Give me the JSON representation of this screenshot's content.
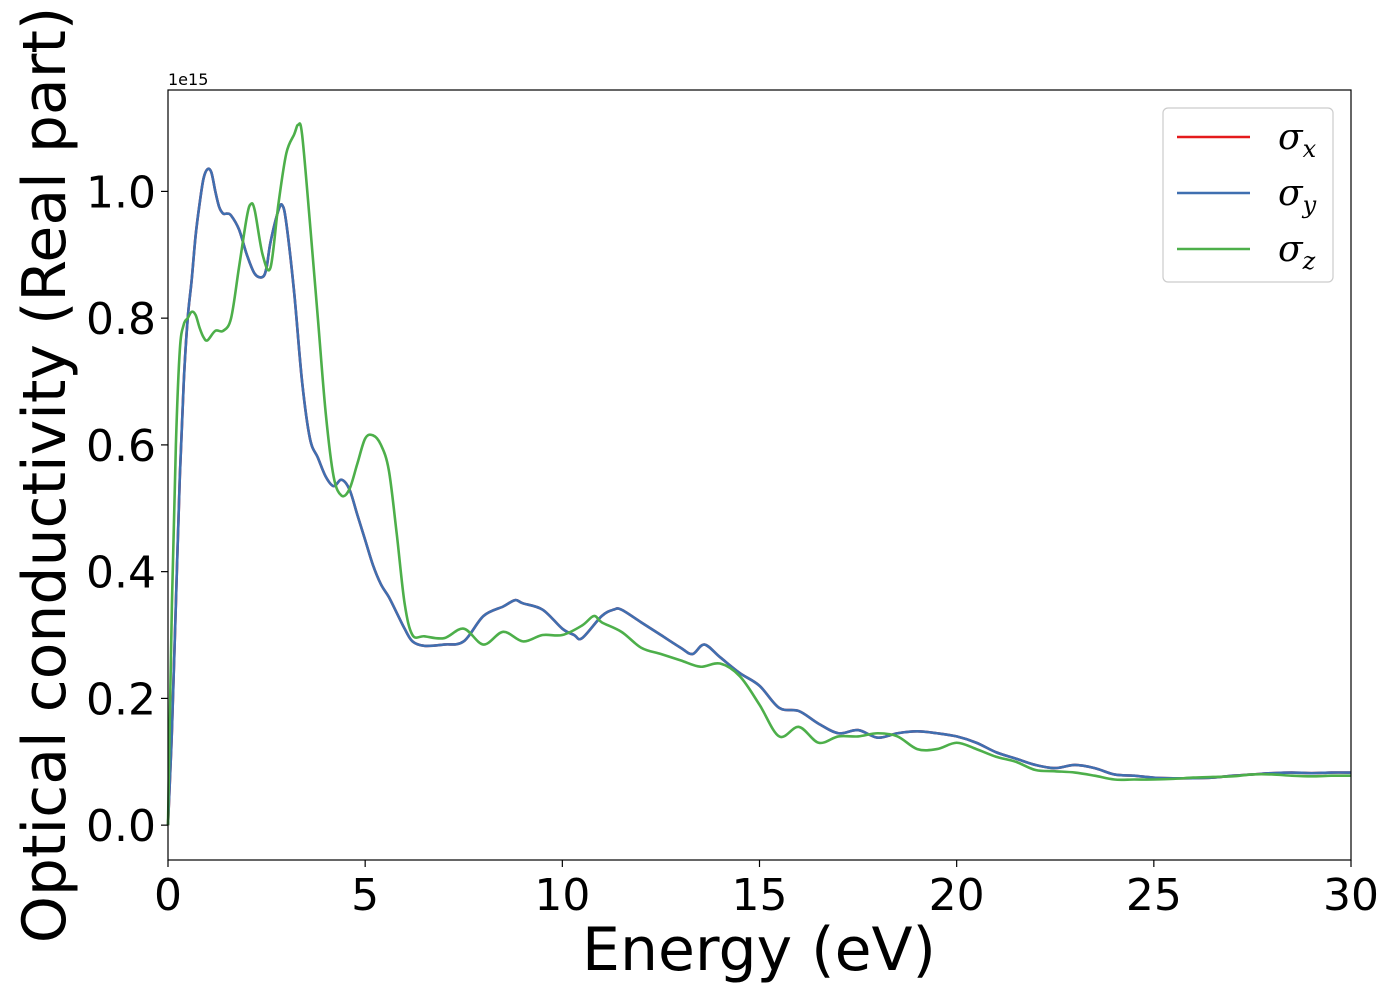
{
  "chart_data": {
    "type": "line",
    "title": "",
    "xlabel": "Energy (eV)",
    "ylabel": "Optical conductivity (Real part)",
    "y_offset_label": "1e15",
    "xlim": [
      0,
      30
    ],
    "ylim": [
      -0.055,
      1.16
    ],
    "x_ticks": [
      0,
      5,
      10,
      15,
      20,
      25,
      30
    ],
    "x_tick_labels": [
      "0",
      "5",
      "10",
      "15",
      "20",
      "25",
      "30"
    ],
    "y_ticks": [
      0.0,
      0.2,
      0.4,
      0.6,
      0.8,
      1.0
    ],
    "y_tick_labels": [
      "0.0",
      "0.2",
      "0.4",
      "0.6",
      "0.8",
      "1.0"
    ],
    "grid": false,
    "legend_position": "top-right",
    "series": [
      {
        "name": "σx",
        "symbol": "σ",
        "subscript": "x",
        "color": "#e41a1c",
        "x": [
          0.0,
          0.1,
          0.2,
          0.3,
          0.4,
          0.5,
          0.6,
          0.7,
          0.8,
          0.9,
          1.0,
          1.1,
          1.2,
          1.3,
          1.4,
          1.5,
          1.6,
          1.8,
          2.0,
          2.2,
          2.4,
          2.5,
          2.6,
          2.8,
          2.9,
          3.0,
          3.2,
          3.4,
          3.6,
          3.8,
          4.0,
          4.2,
          4.4,
          4.6,
          4.8,
          5.0,
          5.2,
          5.4,
          5.6,
          5.8,
          6.0,
          6.2,
          6.5,
          7.0,
          7.5,
          8.0,
          8.5,
          8.8,
          9.0,
          9.5,
          10.0,
          10.3,
          10.5,
          11.0,
          11.3,
          11.5,
          12.0,
          12.5,
          13.0,
          13.3,
          13.6,
          14.0,
          14.5,
          15.0,
          15.5,
          16.0,
          16.5,
          17.0,
          17.5,
          18.0,
          18.5,
          19.0,
          19.5,
          20.0,
          20.5,
          21.0,
          21.5,
          22.0,
          22.5,
          23.0,
          23.5,
          24.0,
          24.5,
          25.0,
          25.5,
          26.0,
          26.5,
          27.0,
          27.5,
          28.0,
          28.5,
          29.0,
          29.5,
          30.0
        ],
        "y": [
          0.0,
          0.15,
          0.35,
          0.55,
          0.7,
          0.8,
          0.86,
          0.93,
          0.98,
          1.02,
          1.035,
          1.03,
          1.0,
          0.975,
          0.965,
          0.965,
          0.962,
          0.94,
          0.9,
          0.87,
          0.865,
          0.88,
          0.92,
          0.97,
          0.978,
          0.95,
          0.84,
          0.7,
          0.61,
          0.58,
          0.55,
          0.535,
          0.545,
          0.53,
          0.49,
          0.45,
          0.41,
          0.38,
          0.36,
          0.335,
          0.31,
          0.29,
          0.283,
          0.285,
          0.29,
          0.33,
          0.345,
          0.355,
          0.35,
          0.34,
          0.31,
          0.3,
          0.295,
          0.33,
          0.34,
          0.34,
          0.32,
          0.3,
          0.28,
          0.27,
          0.285,
          0.265,
          0.24,
          0.22,
          0.185,
          0.18,
          0.16,
          0.145,
          0.15,
          0.138,
          0.145,
          0.148,
          0.145,
          0.14,
          0.13,
          0.115,
          0.105,
          0.095,
          0.09,
          0.095,
          0.09,
          0.08,
          0.078,
          0.075,
          0.074,
          0.074,
          0.075,
          0.078,
          0.08,
          0.082,
          0.083,
          0.082,
          0.083,
          0.083
        ]
      },
      {
        "name": "σy",
        "symbol": "σ",
        "subscript": "y",
        "color": "#3f6fb0",
        "x": [
          0.0,
          0.1,
          0.2,
          0.3,
          0.4,
          0.5,
          0.6,
          0.7,
          0.8,
          0.9,
          1.0,
          1.1,
          1.2,
          1.3,
          1.4,
          1.5,
          1.6,
          1.8,
          2.0,
          2.2,
          2.4,
          2.5,
          2.6,
          2.8,
          2.9,
          3.0,
          3.2,
          3.4,
          3.6,
          3.8,
          4.0,
          4.2,
          4.4,
          4.6,
          4.8,
          5.0,
          5.2,
          5.4,
          5.6,
          5.8,
          6.0,
          6.2,
          6.5,
          7.0,
          7.5,
          8.0,
          8.5,
          8.8,
          9.0,
          9.5,
          10.0,
          10.3,
          10.5,
          11.0,
          11.3,
          11.5,
          12.0,
          12.5,
          13.0,
          13.3,
          13.6,
          14.0,
          14.5,
          15.0,
          15.5,
          16.0,
          16.5,
          17.0,
          17.5,
          18.0,
          18.5,
          19.0,
          19.5,
          20.0,
          20.5,
          21.0,
          21.5,
          22.0,
          22.5,
          23.0,
          23.5,
          24.0,
          24.5,
          25.0,
          25.5,
          26.0,
          26.5,
          27.0,
          27.5,
          28.0,
          28.5,
          29.0,
          29.5,
          30.0
        ],
        "y": [
          0.0,
          0.15,
          0.35,
          0.55,
          0.7,
          0.8,
          0.86,
          0.93,
          0.98,
          1.02,
          1.035,
          1.03,
          1.0,
          0.975,
          0.965,
          0.965,
          0.962,
          0.94,
          0.9,
          0.87,
          0.865,
          0.88,
          0.92,
          0.97,
          0.978,
          0.95,
          0.84,
          0.7,
          0.61,
          0.58,
          0.55,
          0.535,
          0.545,
          0.53,
          0.49,
          0.45,
          0.41,
          0.38,
          0.36,
          0.335,
          0.31,
          0.29,
          0.283,
          0.285,
          0.29,
          0.33,
          0.345,
          0.355,
          0.35,
          0.34,
          0.31,
          0.3,
          0.295,
          0.33,
          0.34,
          0.34,
          0.32,
          0.3,
          0.28,
          0.27,
          0.285,
          0.265,
          0.24,
          0.22,
          0.185,
          0.18,
          0.16,
          0.145,
          0.15,
          0.138,
          0.145,
          0.148,
          0.145,
          0.14,
          0.13,
          0.115,
          0.105,
          0.095,
          0.09,
          0.095,
          0.09,
          0.08,
          0.078,
          0.075,
          0.074,
          0.074,
          0.075,
          0.078,
          0.08,
          0.082,
          0.083,
          0.082,
          0.083,
          0.083
        ]
      },
      {
        "name": "σz",
        "symbol": "σ",
        "subscript": "z",
        "color": "#4daf4a",
        "x": [
          0.0,
          0.1,
          0.2,
          0.3,
          0.4,
          0.5,
          0.6,
          0.7,
          0.8,
          0.9,
          1.0,
          1.2,
          1.4,
          1.6,
          1.8,
          2.0,
          2.1,
          2.2,
          2.4,
          2.6,
          2.8,
          3.0,
          3.2,
          3.3,
          3.4,
          3.6,
          3.8,
          4.0,
          4.2,
          4.4,
          4.6,
          4.8,
          5.0,
          5.2,
          5.4,
          5.6,
          5.8,
          6.0,
          6.2,
          6.5,
          7.0,
          7.5,
          8.0,
          8.5,
          9.0,
          9.5,
          10.0,
          10.5,
          10.8,
          11.0,
          11.5,
          12.0,
          12.5,
          13.0,
          13.5,
          14.0,
          14.5,
          15.0,
          15.5,
          16.0,
          16.5,
          17.0,
          17.5,
          18.0,
          18.5,
          19.0,
          19.5,
          20.0,
          20.5,
          21.0,
          21.5,
          22.0,
          22.5,
          23.0,
          23.5,
          24.0,
          24.5,
          25.0,
          25.5,
          26.0,
          26.5,
          27.0,
          27.5,
          28.0,
          28.5,
          29.0,
          29.5,
          30.0
        ],
        "y": [
          0.0,
          0.35,
          0.6,
          0.75,
          0.79,
          0.8,
          0.81,
          0.805,
          0.785,
          0.77,
          0.765,
          0.78,
          0.78,
          0.8,
          0.88,
          0.96,
          0.98,
          0.97,
          0.9,
          0.88,
          0.98,
          1.06,
          1.09,
          1.105,
          1.09,
          0.95,
          0.8,
          0.65,
          0.55,
          0.52,
          0.53,
          0.57,
          0.61,
          0.615,
          0.6,
          0.56,
          0.46,
          0.35,
          0.3,
          0.298,
          0.295,
          0.31,
          0.285,
          0.305,
          0.29,
          0.3,
          0.3,
          0.315,
          0.33,
          0.32,
          0.305,
          0.28,
          0.27,
          0.26,
          0.25,
          0.255,
          0.235,
          0.19,
          0.14,
          0.155,
          0.13,
          0.14,
          0.14,
          0.145,
          0.14,
          0.12,
          0.12,
          0.13,
          0.12,
          0.108,
          0.1,
          0.087,
          0.085,
          0.083,
          0.078,
          0.072,
          0.072,
          0.072,
          0.073,
          0.075,
          0.076,
          0.077,
          0.08,
          0.08,
          0.078,
          0.077,
          0.078,
          0.078
        ]
      }
    ]
  }
}
